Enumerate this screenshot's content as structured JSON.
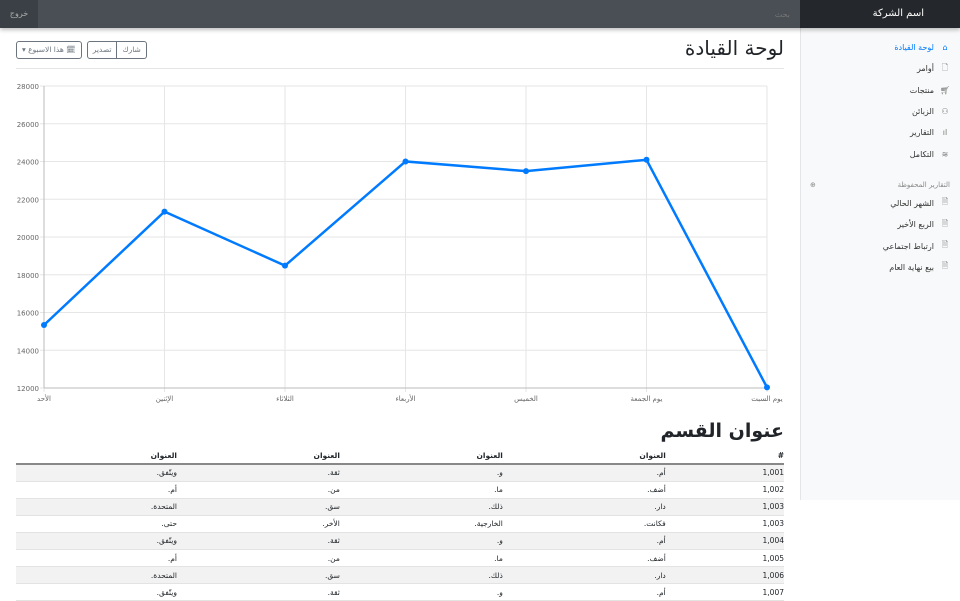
{
  "navbar": {
    "brand": "اسم الشركة",
    "search_placeholder": "بحث",
    "signout": "خروج"
  },
  "sidebar": {
    "items": [
      {
        "label": "لوحة القيادة",
        "icon": "home-icon",
        "active": true
      },
      {
        "label": "أوامر",
        "icon": "file-icon"
      },
      {
        "label": "منتجات",
        "icon": "shopping-cart-icon"
      },
      {
        "label": "الزبائن",
        "icon": "users-icon"
      },
      {
        "label": "التقارير",
        "icon": "bar-chart-icon"
      },
      {
        "label": "التكامل",
        "icon": "layers-icon"
      }
    ],
    "saved_heading": "التقارير المحفوظة",
    "saved": [
      {
        "label": "الشهر الحالي"
      },
      {
        "label": "الربع الأخير"
      },
      {
        "label": "ارتباط اجتماعي"
      },
      {
        "label": "بيع نهاية العام"
      }
    ]
  },
  "header": {
    "title": "لوحة القيادة",
    "share": "شارك",
    "export": "تصدير",
    "period": "هذا الاسبوع"
  },
  "colors": {
    "accent": "#007bff"
  },
  "chart_data": {
    "type": "line",
    "categories": [
      "الأحد",
      "الإثنين",
      "الثلاثاء",
      "الأربعاء",
      "الخميس",
      "يوم الجمعة",
      "يوم السبت"
    ],
    "values": [
      15339,
      21345,
      18483,
      24003,
      23489,
      24092,
      12034
    ],
    "ylim": [
      12000,
      28000
    ],
    "yticks": [
      12000,
      14000,
      16000,
      18000,
      20000,
      22000,
      24000,
      26000,
      28000
    ],
    "grid": true,
    "color": "#007bff"
  },
  "section": {
    "title": "عنوان القسم",
    "headers": [
      "#",
      "العنوان",
      "العنوان",
      "العنوان",
      "العنوان"
    ],
    "rows": [
      [
        "1,001",
        "أم.",
        "و.",
        "ثقة.",
        "ويتّفق."
      ],
      [
        "1,002",
        "أضف.",
        "ما.",
        "من.",
        "أم."
      ],
      [
        "1,003",
        "دار.",
        "ذلك.",
        "سق.",
        "المتحدة."
      ],
      [
        "1,003",
        "فكانت.",
        "الخارجية.",
        "الأخر.",
        "حتى."
      ],
      [
        "1,004",
        "أم.",
        "و.",
        "ثقة.",
        "ويتّفق."
      ],
      [
        "1,005",
        "أضف.",
        "ما.",
        "من.",
        "أم."
      ],
      [
        "1,006",
        "دار.",
        "ذلك.",
        "سق.",
        "المتحدة."
      ],
      [
        "1,007",
        "أم.",
        "و.",
        "ثقة.",
        "ويتّفق."
      ]
    ]
  }
}
